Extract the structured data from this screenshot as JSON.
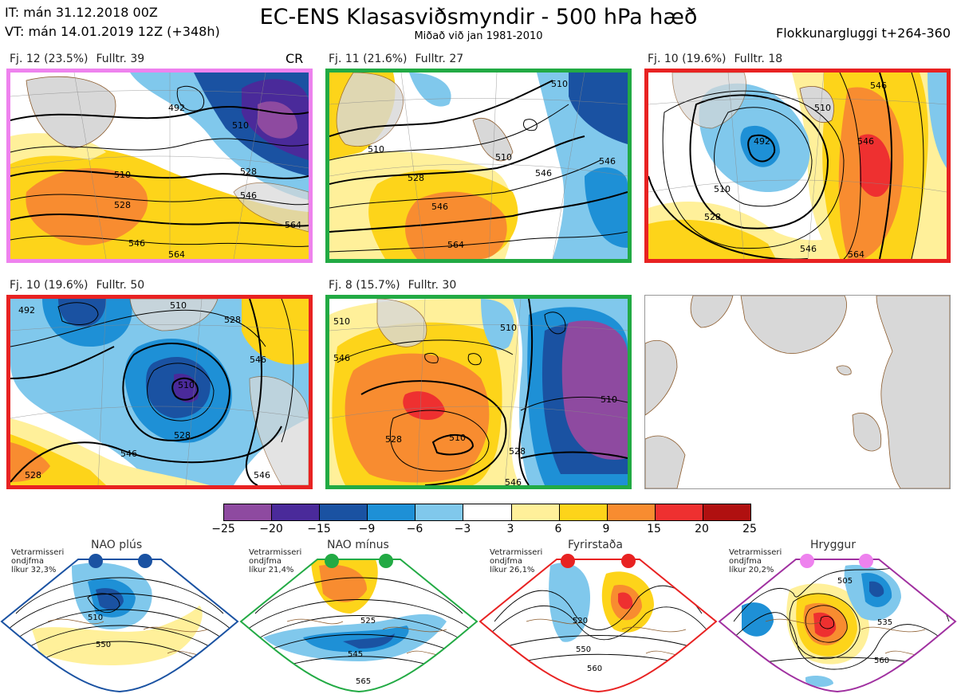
{
  "header": {
    "init_line": "IT: mán 31.12.2018 00Z",
    "valid_line": "VT: mán 14.01.2019 12Z  (+348h)",
    "title": "EC-ENS Klasasviðsmyndir - 500 hPa hæð",
    "subtitle": "Miðað við jan 1981-2010",
    "window": "Flokkunargluggi t+264-360"
  },
  "panels": [
    {
      "fj": "Fj. 12 (23.5%)",
      "full": "Fulltr. 39",
      "extra": "CR",
      "border": "#ee82ee"
    },
    {
      "fj": "Fj. 11 (21.6%)",
      "full": "Fulltr. 27",
      "border": "#22aa44"
    },
    {
      "fj": "Fj. 10 (19.6%)",
      "full": "Fulltr. 18",
      "border": "#e82222"
    },
    {
      "fj": "Fj. 10 (19.6%)",
      "full": "Fulltr. 50",
      "border": "#e82222"
    },
    {
      "fj": "Fj. 8 (15.7%)",
      "full": "Fulltr. 30",
      "border": "#22aa44"
    }
  ],
  "contour_labels": [
    [
      "492",
      "510",
      "510",
      "528",
      "528",
      "546",
      "564",
      "546",
      "564"
    ],
    [
      "510",
      "528",
      "546",
      "564",
      "546",
      "510",
      "546",
      "510"
    ],
    [
      "492",
      "510",
      "528",
      "546",
      "546",
      "564",
      "510",
      "546"
    ],
    [
      "492",
      "510",
      "528",
      "510",
      "528",
      "546",
      "546",
      "528",
      "546"
    ],
    [
      "510",
      "510",
      "528",
      "546",
      "510",
      "528",
      "546",
      "510"
    ]
  ],
  "colorbar": {
    "ticks": [
      "−25",
      "−20",
      "−15",
      "−9",
      "−6",
      "−3",
      "3",
      "6",
      "9",
      "15",
      "20",
      "25"
    ],
    "colors": [
      "#8e4aa0",
      "#4a2a9a",
      "#1a52a2",
      "#1e90d6",
      "#80c8ec",
      "#ffffff",
      "#fff09a",
      "#fdd41a",
      "#f88c30",
      "#ee3030",
      "#b01010"
    ]
  },
  "regimes": [
    {
      "name": "NAO plús",
      "note": "Vetrarmisseri\nondjfma\nlíkur 32,3%",
      "color": "#1a52a2",
      "labels": [
        "510",
        "550"
      ]
    },
    {
      "name": "NAO mínus",
      "note": "Vetrarmisseri\nondjfma\nlíkur 21,4%",
      "color": "#22aa44",
      "labels": [
        "525",
        "545",
        "565"
      ]
    },
    {
      "name": "Fyrirstaða",
      "note": "Vetrarmisseri\nondjfma\nlíkur 26,1%",
      "color": "#e82222",
      "labels": [
        "520",
        "550",
        "560"
      ]
    },
    {
      "name": "Hryggur",
      "note": "Vetrarmisseri\nondjfma\nlíkur 20,2%",
      "color": "#a030a0",
      "labels": [
        "505",
        "535",
        "560"
      ]
    }
  ]
}
